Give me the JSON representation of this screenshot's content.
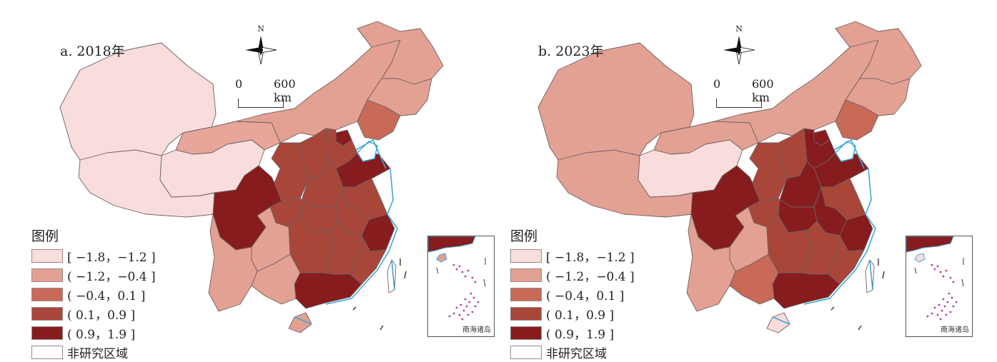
{
  "panels": [
    {
      "title": "a. 2018年",
      "fills": {
        "west": "#f9dcdc",
        "northwest_mid": "#e8a59a",
        "qinghai": "#f9dcdc",
        "inner_mongolia": "#e3a193",
        "heilongjiang": "#e3a193",
        "jilin": "#e3a193",
        "liaoning": "#c96a58",
        "hebei": "#a8463a",
        "beijing_tianjin": "#861c1e",
        "shanxi": "#a8463a",
        "shaanxi": "#a8463a",
        "henan": "#a8463a",
        "shandong": "#861c1e",
        "jiangsu": "#a8463a",
        "anhui": "#a8463a",
        "zhejiang": "#861c1e",
        "sichuan": "#861c1e",
        "chongqing": "#a8463a",
        "hubei": "#a8463a",
        "hunan": "#a8463a",
        "jiangxi": "#a8463a",
        "fujian": "#a8463a",
        "guangdong": "#861c1e",
        "guangxi": "#e3a193",
        "guizhou": "#e3a193",
        "yunnan": "#e3a193",
        "hainan": "#e3a193",
        "taiwan": "#ffffff",
        "inset_top": "#861c1e"
      }
    },
    {
      "title": "b. 2023年",
      "fills": {
        "west": "#e3a193",
        "northwest_mid": "#e3a193",
        "qinghai": "#f9dcdc",
        "inner_mongolia": "#e3a193",
        "heilongjiang": "#e3a193",
        "jilin": "#e3a193",
        "liaoning": "#c96a58",
        "hebei": "#861c1e",
        "beijing_tianjin": "#861c1e",
        "shanxi": "#a8463a",
        "shaanxi": "#a8463a",
        "henan": "#861c1e",
        "shandong": "#861c1e",
        "jiangsu": "#a8463a",
        "anhui": "#861c1e",
        "zhejiang": "#861c1e",
        "sichuan": "#861c1e",
        "chongqing": "#a8463a",
        "hubei": "#861c1e",
        "hunan": "#a8463a",
        "jiangxi": "#a8463a",
        "fujian": "#a8463a",
        "guangdong": "#861c1e",
        "guangxi": "#c96a58",
        "guizhou": "#e3a193",
        "yunnan": "#e3a193",
        "hainan": "#f9dcdc",
        "taiwan": "#ffffff",
        "inset_top": "#861c1e"
      }
    }
  ],
  "north_label": "N",
  "scale": {
    "start": "0",
    "end": "600 km"
  },
  "legend": {
    "title": "图例",
    "items": [
      {
        "label": "[ −1.8，−1.2 ]",
        "color": "#f9dcdc"
      },
      {
        "label": "( −1.2，−0.4 ]",
        "color": "#e3a193"
      },
      {
        "label": "( −0.4，0.1 ]",
        "color": "#c96a58"
      },
      {
        "label": "( 0.1，0.9 ]",
        "color": "#a8463a"
      },
      {
        "label": "( 0.9，1.9 ]",
        "color": "#861c1e"
      },
      {
        "label": "非研究区域",
        "color": "#ffffff"
      }
    ]
  },
  "inset_label": "南海诸岛",
  "colors": {
    "border": "#6f6060",
    "coast": "#3fa7d6"
  }
}
